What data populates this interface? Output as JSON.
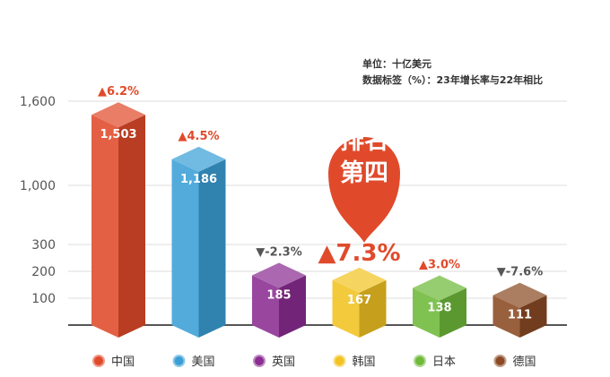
{
  "notes": {
    "unit": "单位：十亿美元",
    "label_desc": "数据标签（%）：23年增长率与22年相比"
  },
  "callout": {
    "line1": "排名",
    "line2": "第四",
    "color": "#E04A2B"
  },
  "chart_data": {
    "type": "bar",
    "title": "",
    "xlabel": "",
    "ylabel": "",
    "categories": [
      "中国",
      "美国",
      "英国",
      "韩国",
      "日本",
      "德国"
    ],
    "values": [
      1503,
      1186,
      185,
      167,
      138,
      111
    ],
    "value_labels": [
      "1,503",
      "1,186",
      "185",
      "167",
      "138",
      "111"
    ],
    "growth_labels": [
      "▲6.2%",
      "▲4.5%",
      "▼-2.3%",
      "▲7.3%",
      "▲3.0%",
      "▼-7.6%"
    ],
    "growth_direction": [
      "up",
      "up",
      "down",
      "up",
      "up",
      "down"
    ],
    "colors": [
      "#E04A2B",
      "#3A9FD6",
      "#8B2D92",
      "#F2C322",
      "#6FBA3A",
      "#8B4A24"
    ],
    "yticks": [
      100,
      200,
      300,
      1000,
      1600
    ],
    "ytick_labels": [
      "100",
      "200",
      "300",
      "1,000",
      "1,600"
    ],
    "axis_break": "non-linear scale (large values compressed)",
    "highlight_index": 3,
    "grid": true,
    "legend_position": "bottom"
  }
}
